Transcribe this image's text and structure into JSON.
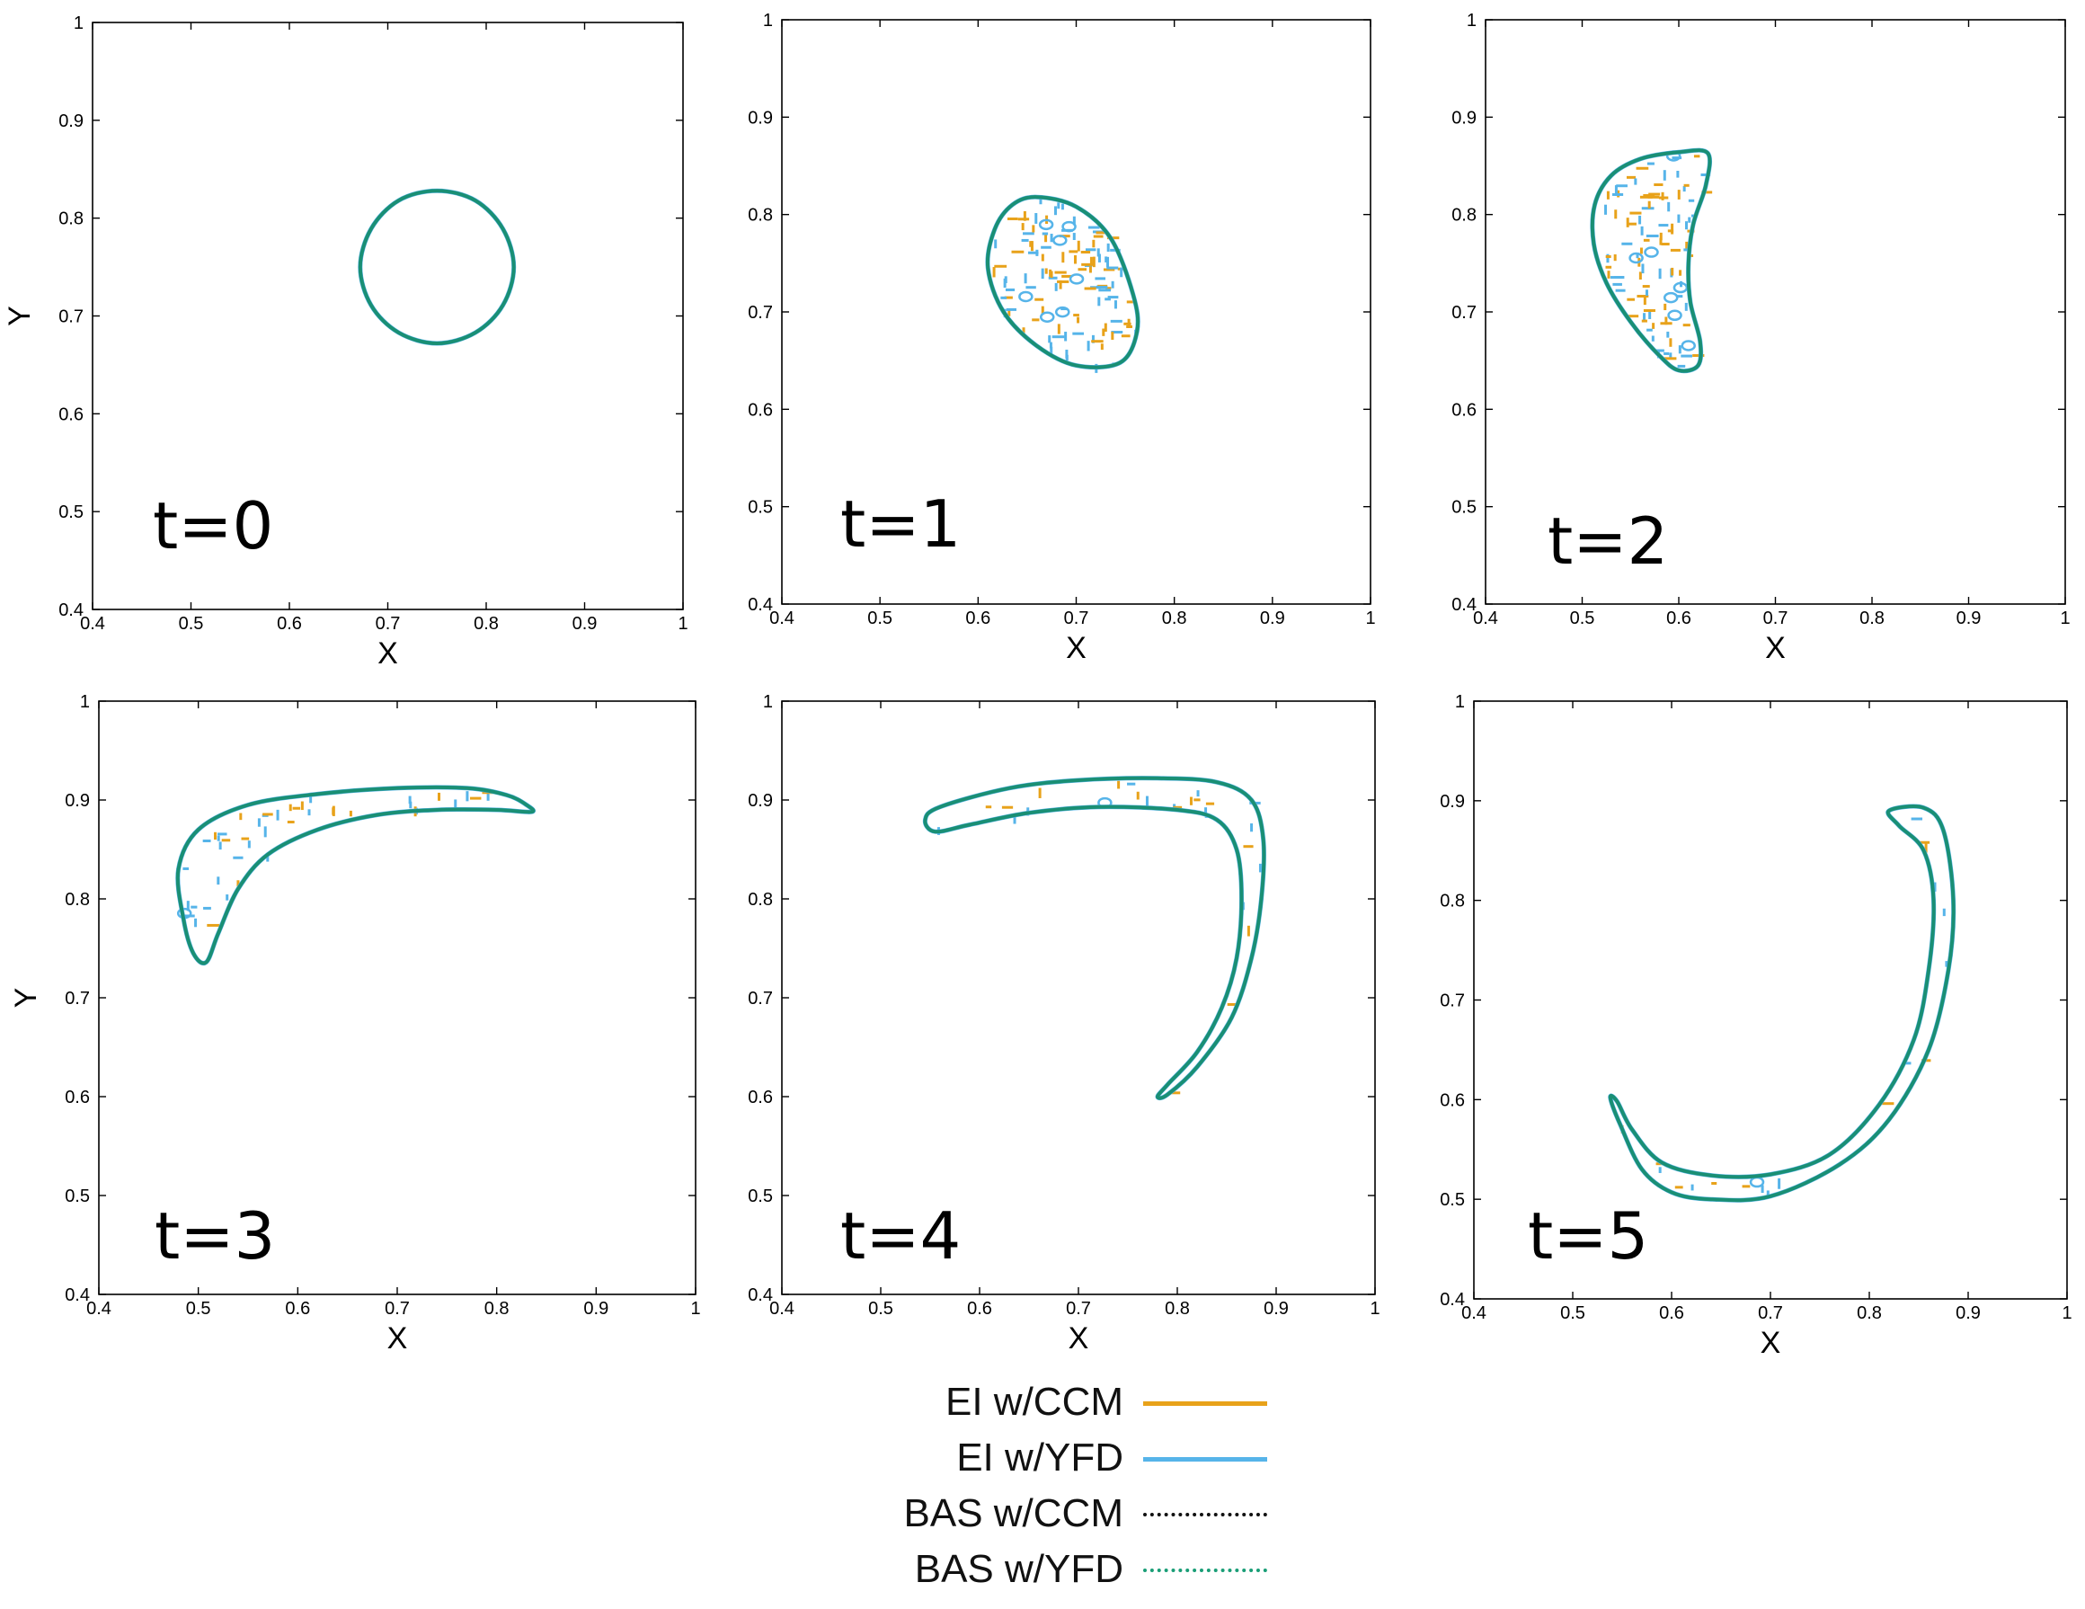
{
  "chart_data": [
    {
      "type": "line",
      "panel_label": "t=0",
      "xlabel": "X",
      "ylabel": "Y",
      "xlim": [
        0.4,
        1.0
      ],
      "ylim": [
        0.4,
        1.0
      ],
      "xticks": [
        "0.4",
        "0.5",
        "0.6",
        "0.7",
        "0.8",
        "0.9",
        "1"
      ],
      "yticks": [
        "0.4",
        "0.5",
        "0.6",
        "0.7",
        "0.8",
        "0.9",
        "1"
      ],
      "interface_shape": "circle",
      "interface": [
        [
          0.75,
          0.828
        ],
        [
          0.789,
          0.818
        ],
        [
          0.817,
          0.789
        ],
        [
          0.828,
          0.75
        ],
        [
          0.817,
          0.711
        ],
        [
          0.789,
          0.683
        ],
        [
          0.75,
          0.672
        ],
        [
          0.711,
          0.683
        ],
        [
          0.683,
          0.711
        ],
        [
          0.672,
          0.75
        ],
        [
          0.683,
          0.789
        ],
        [
          0.711,
          0.818
        ],
        [
          0.75,
          0.828
        ]
      ]
    },
    {
      "type": "line",
      "panel_label": "t=1",
      "xlabel": "X",
      "ylabel": "",
      "xlim": [
        0.4,
        1.0
      ],
      "ylim": [
        0.4,
        1.0
      ],
      "xticks": [
        "0.4",
        "0.5",
        "0.6",
        "0.7",
        "0.8",
        "0.9",
        "1"
      ],
      "yticks": [
        "0.4",
        "0.5",
        "0.6",
        "0.7",
        "0.8",
        "0.9",
        "1"
      ],
      "interface_shape": "ellipse",
      "interface": [
        [
          0.66,
          0.818
        ],
        [
          0.7,
          0.808
        ],
        [
          0.735,
          0.776
        ],
        [
          0.758,
          0.718
        ],
        [
          0.762,
          0.68
        ],
        [
          0.745,
          0.648
        ],
        [
          0.7,
          0.645
        ],
        [
          0.66,
          0.665
        ],
        [
          0.626,
          0.7
        ],
        [
          0.61,
          0.745
        ],
        [
          0.617,
          0.785
        ],
        [
          0.635,
          0.81
        ],
        [
          0.66,
          0.818
        ]
      ]
    },
    {
      "type": "line",
      "panel_label": "t=2",
      "xlabel": "X",
      "ylabel": "",
      "xlim": [
        0.4,
        1.0
      ],
      "ylim": [
        0.4,
        1.0
      ],
      "xticks": [
        "0.4",
        "0.5",
        "0.6",
        "0.7",
        "0.8",
        "0.9",
        "1"
      ],
      "yticks": [
        "0.4",
        "0.5",
        "0.6",
        "0.7",
        "0.8",
        "0.9",
        "1"
      ],
      "interface_shape": "crescent",
      "interface": [
        [
          0.6,
          0.864
        ],
        [
          0.63,
          0.863
        ],
        [
          0.628,
          0.83
        ],
        [
          0.615,
          0.79
        ],
        [
          0.61,
          0.75
        ],
        [
          0.612,
          0.71
        ],
        [
          0.622,
          0.67
        ],
        [
          0.62,
          0.645
        ],
        [
          0.6,
          0.64
        ],
        [
          0.58,
          0.655
        ],
        [
          0.55,
          0.69
        ],
        [
          0.525,
          0.73
        ],
        [
          0.512,
          0.77
        ],
        [
          0.513,
          0.81
        ],
        [
          0.53,
          0.84
        ],
        [
          0.56,
          0.857
        ],
        [
          0.6,
          0.864
        ]
      ]
    },
    {
      "type": "line",
      "panel_label": "t=3",
      "xlabel": "X",
      "ylabel": "Y",
      "xlim": [
        0.4,
        1.0
      ],
      "ylim": [
        0.4,
        1.0
      ],
      "xticks": [
        "0.4",
        "0.5",
        "0.6",
        "0.7",
        "0.8",
        "0.9",
        "1"
      ],
      "yticks": [
        "0.4",
        "0.5",
        "0.6",
        "0.7",
        "0.8",
        "0.9",
        "1"
      ],
      "interface_shape": "crescent",
      "interface": [
        [
          0.5,
          0.87
        ],
        [
          0.55,
          0.895
        ],
        [
          0.62,
          0.906
        ],
        [
          0.7,
          0.912
        ],
        [
          0.77,
          0.912
        ],
        [
          0.81,
          0.905
        ],
        [
          0.83,
          0.895
        ],
        [
          0.835,
          0.888
        ],
        [
          0.8,
          0.89
        ],
        [
          0.74,
          0.89
        ],
        [
          0.68,
          0.885
        ],
        [
          0.62,
          0.87
        ],
        [
          0.57,
          0.845
        ],
        [
          0.54,
          0.81
        ],
        [
          0.52,
          0.765
        ],
        [
          0.508,
          0.736
        ],
        [
          0.495,
          0.745
        ],
        [
          0.485,
          0.78
        ],
        [
          0.48,
          0.83
        ],
        [
          0.5,
          0.87
        ]
      ]
    },
    {
      "type": "line",
      "panel_label": "t=4",
      "xlabel": "X",
      "ylabel": "",
      "xlim": [
        0.4,
        1.0
      ],
      "ylim": [
        0.4,
        1.0
      ],
      "xticks": [
        "0.4",
        "0.5",
        "0.6",
        "0.7",
        "0.8",
        "0.9",
        "1"
      ],
      "yticks": [
        "0.4",
        "0.5",
        "0.6",
        "0.7",
        "0.8",
        "0.9",
        "1"
      ],
      "interface_shape": "hook",
      "interface": [
        [
          0.56,
          0.893
        ],
        [
          0.63,
          0.912
        ],
        [
          0.7,
          0.92
        ],
        [
          0.78,
          0.922
        ],
        [
          0.84,
          0.918
        ],
        [
          0.875,
          0.9
        ],
        [
          0.887,
          0.86
        ],
        [
          0.885,
          0.8
        ],
        [
          0.875,
          0.74
        ],
        [
          0.855,
          0.68
        ],
        [
          0.82,
          0.63
        ],
        [
          0.79,
          0.602
        ],
        [
          0.78,
          0.6
        ],
        [
          0.79,
          0.612
        ],
        [
          0.82,
          0.645
        ],
        [
          0.845,
          0.69
        ],
        [
          0.86,
          0.74
        ],
        [
          0.865,
          0.8
        ],
        [
          0.86,
          0.85
        ],
        [
          0.84,
          0.88
        ],
        [
          0.8,
          0.89
        ],
        [
          0.72,
          0.893
        ],
        [
          0.65,
          0.887
        ],
        [
          0.59,
          0.875
        ],
        [
          0.555,
          0.868
        ],
        [
          0.545,
          0.88
        ],
        [
          0.56,
          0.893
        ]
      ]
    },
    {
      "type": "line",
      "panel_label": "t=5",
      "xlabel": "X",
      "ylabel": "",
      "xlim": [
        0.4,
        1.0
      ],
      "ylim": [
        0.4,
        1.0
      ],
      "xticks": [
        "0.4",
        "0.5",
        "0.6",
        "0.7",
        "0.8",
        "0.9",
        "1"
      ],
      "yticks": [
        "0.4",
        "0.5",
        "0.6",
        "0.7",
        "0.8",
        "0.9",
        "1"
      ],
      "interface_shape": "hook",
      "interface": [
        [
          0.82,
          0.89
        ],
        [
          0.855,
          0.893
        ],
        [
          0.875,
          0.87
        ],
        [
          0.885,
          0.8
        ],
        [
          0.88,
          0.73
        ],
        [
          0.86,
          0.65
        ],
        [
          0.82,
          0.58
        ],
        [
          0.77,
          0.535
        ],
        [
          0.7,
          0.503
        ],
        [
          0.64,
          0.5
        ],
        [
          0.6,
          0.507
        ],
        [
          0.57,
          0.53
        ],
        [
          0.548,
          0.575
        ],
        [
          0.538,
          0.602
        ],
        [
          0.545,
          0.598
        ],
        [
          0.56,
          0.57
        ],
        [
          0.59,
          0.537
        ],
        [
          0.64,
          0.524
        ],
        [
          0.7,
          0.525
        ],
        [
          0.76,
          0.545
        ],
        [
          0.81,
          0.595
        ],
        [
          0.845,
          0.66
        ],
        [
          0.86,
          0.73
        ],
        [
          0.865,
          0.8
        ],
        [
          0.855,
          0.85
        ],
        [
          0.83,
          0.875
        ],
        [
          0.82,
          0.89
        ]
      ]
    }
  ],
  "legend": [
    {
      "label": "EI w/CCM",
      "color": "#e8a21a",
      "style": "solid"
    },
    {
      "label": "EI w/YFD",
      "color": "#56b4e9",
      "style": "solid"
    },
    {
      "label": "BAS w/CCM",
      "color": "#111111",
      "style": "dotted"
    },
    {
      "label": "BAS w/YFD",
      "color": "#1a9e77",
      "style": "dotted"
    }
  ],
  "colors": {
    "interface": "#1a8f74",
    "ei_ccm": "#e8a21a",
    "ei_yfd": "#56b4e9",
    "axis": "#000000"
  }
}
